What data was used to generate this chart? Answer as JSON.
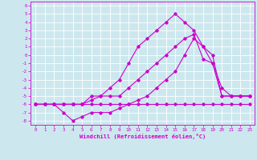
{
  "title": "",
  "xlabel": "Windchill (Refroidissement éolien,°C)",
  "background_color": "#cce8ee",
  "grid_color": "#ffffff",
  "line_color": "#cc00cc",
  "xlim": [
    -0.5,
    23.5
  ],
  "ylim": [
    -8.5,
    6.5
  ],
  "xticks": [
    0,
    1,
    2,
    3,
    4,
    5,
    6,
    7,
    8,
    9,
    10,
    11,
    12,
    13,
    14,
    15,
    16,
    17,
    18,
    19,
    20,
    21,
    22,
    23
  ],
  "yticks": [
    6,
    5,
    4,
    3,
    2,
    1,
    0,
    -1,
    -2,
    -3,
    -4,
    -5,
    -6,
    -7,
    -8
  ],
  "line1_y": [
    -6,
    -6,
    -6,
    -6,
    -6,
    -6,
    -5,
    -5,
    -4,
    -3,
    -1,
    1,
    2,
    3,
    4,
    5,
    4,
    3,
    1,
    -1,
    -4,
    -5,
    -5,
    -5
  ],
  "line2_y": [
    -6,
    -6,
    -6,
    -6,
    -6,
    -6,
    -5.5,
    -5,
    -5,
    -5,
    -4,
    -3,
    -2,
    -1,
    0,
    1,
    2,
    2.5,
    -0.5,
    -1,
    -5,
    -5,
    -5,
    -5
  ],
  "line3_y": [
    -6,
    -6,
    -6,
    -6,
    -6,
    -6,
    -6,
    -6,
    -6,
    -6,
    -6,
    -6,
    -6,
    -6,
    -6,
    -6,
    -6,
    -6,
    -6,
    -6,
    -6,
    -6,
    -6,
    -6
  ],
  "line4_y": [
    -6,
    -6,
    -6,
    -7,
    -8,
    -7.5,
    -7,
    -7,
    -7,
    -6.5,
    -6,
    -5.5,
    -5,
    -4,
    -3,
    -2,
    0,
    2,
    1,
    0,
    -5,
    -5,
    -5,
    -5
  ],
  "marker": "D",
  "markersize": 1.8,
  "linewidth": 0.8,
  "tick_fontsize": 4.2,
  "xlabel_fontsize": 5.0
}
